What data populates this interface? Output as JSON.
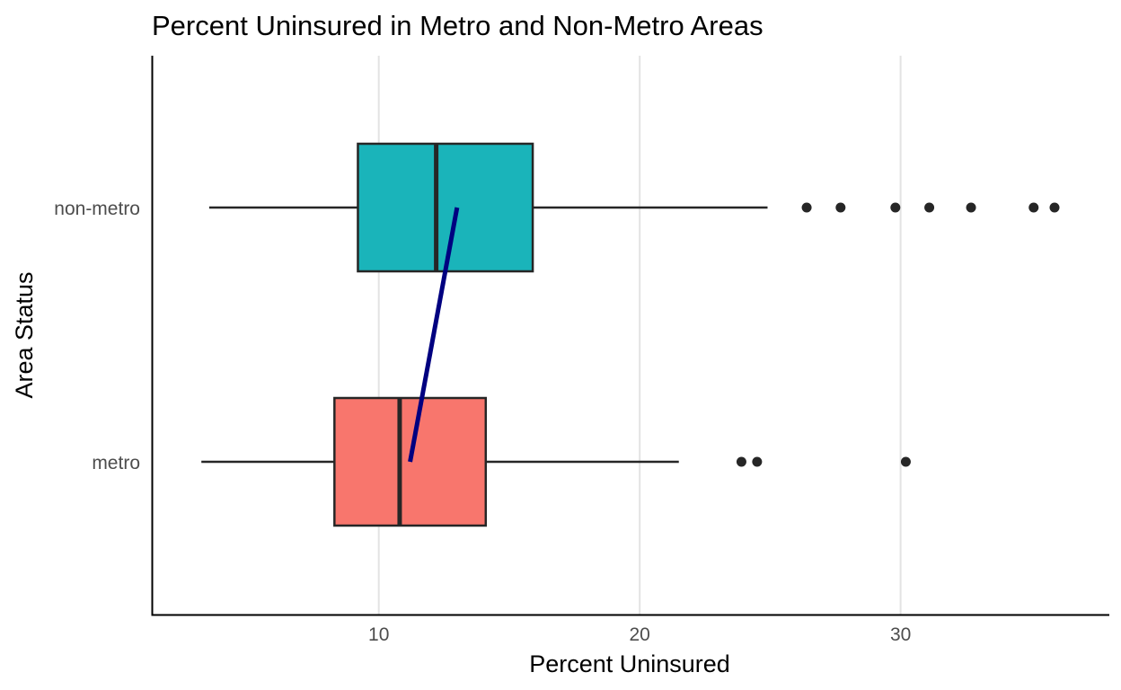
{
  "chart_data": {
    "type": "boxplot",
    "title": "Percent Uninsured in Metro and Non-Metro Areas",
    "xlabel": "Percent Uninsured",
    "ylabel": "Area Status",
    "orientation": "horizontal",
    "xlim": [
      1.3,
      38.0
    ],
    "xticks": [
      10,
      20,
      30
    ],
    "grid": {
      "major_x": true,
      "major_y": false
    },
    "legend": "none",
    "categories": [
      "metro",
      "non-metro"
    ],
    "series": [
      {
        "category": "metro",
        "min": 3.2,
        "q1": 8.3,
        "median": 10.8,
        "q3": 14.1,
        "max": 21.5,
        "outliers": [
          23.9,
          24.5,
          30.2
        ],
        "mean": 11.2,
        "fill": "#F8766D"
      },
      {
        "category": "non-metro",
        "min": 3.5,
        "q1": 9.2,
        "median": 12.2,
        "q3": 15.9,
        "max": 24.9,
        "outliers": [
          26.4,
          27.7,
          29.8,
          31.1,
          32.7,
          35.1,
          35.9
        ],
        "mean": 13.0,
        "fill": "#1AB4BA"
      }
    ],
    "mean_line": {
      "color": "#000080"
    },
    "box_line_color": "#262626"
  }
}
